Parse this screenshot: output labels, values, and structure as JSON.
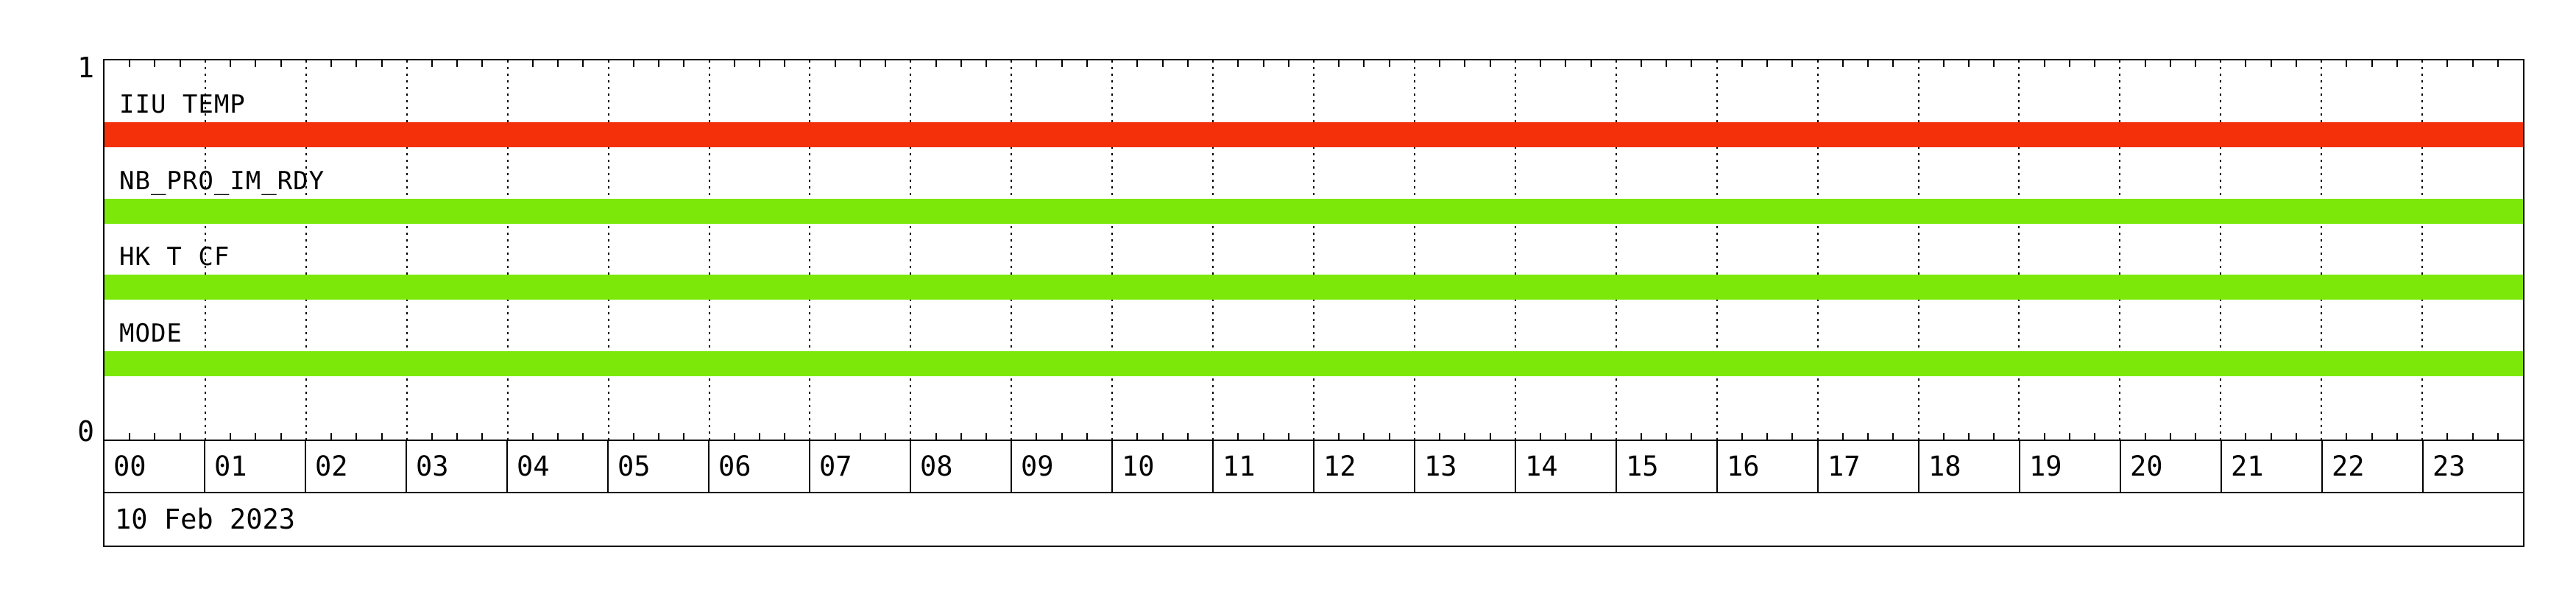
{
  "chart_data": {
    "type": "bar",
    "subtype": "status-timeline",
    "title": "",
    "date_label": "10 Feb 2023",
    "x_axis": {
      "unit": "hour",
      "range": [
        0,
        24
      ],
      "tick_labels": [
        "00",
        "01",
        "02",
        "03",
        "04",
        "05",
        "06",
        "07",
        "08",
        "09",
        "10",
        "11",
        "12",
        "13",
        "14",
        "15",
        "16",
        "17",
        "18",
        "19",
        "20",
        "21",
        "22",
        "23"
      ],
      "minor_tick_minutes": 15,
      "gridlines": "dotted vertical at every hour"
    },
    "y_axis": {
      "range": [
        0,
        1
      ],
      "tick_labels_top_to_bottom": [
        "1",
        "0"
      ]
    },
    "legend": "none",
    "colors": {
      "ok_green": "#7ce80a",
      "alert_red": "#f4300a",
      "axis_black": "#000000",
      "background": "#ffffff"
    },
    "series": [
      {
        "name": "IIU TEMP",
        "color": "#f4300a",
        "segments": [
          {
            "start_hour": 0,
            "end_hour": 24,
            "value": 1
          }
        ]
      },
      {
        "name": "NB_PRO_IM_RDY",
        "color": "#7ce80a",
        "segments": [
          {
            "start_hour": 0,
            "end_hour": 24,
            "value": 1
          }
        ]
      },
      {
        "name": "HK T CF",
        "color": "#7ce80a",
        "segments": [
          {
            "start_hour": 0,
            "end_hour": 24,
            "value": 1
          }
        ]
      },
      {
        "name": "MODE",
        "color": "#7ce80a",
        "segments": [
          {
            "start_hour": 0,
            "end_hour": 24,
            "value": 1
          }
        ]
      }
    ]
  }
}
